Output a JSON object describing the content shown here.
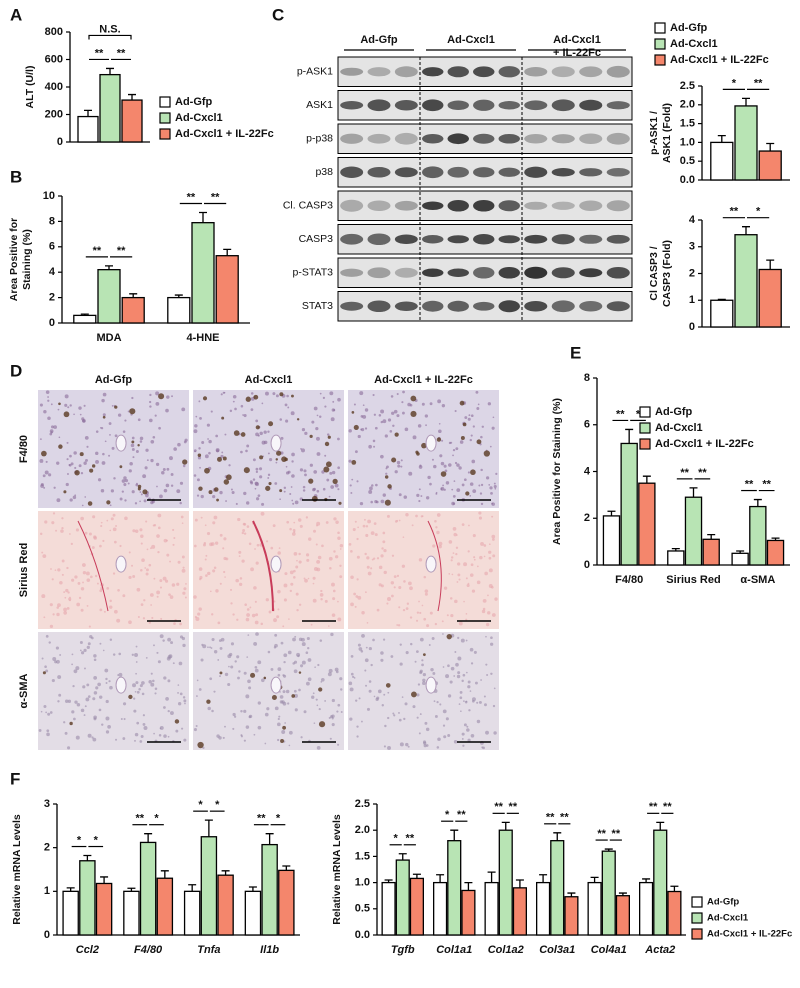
{
  "panels": [
    "A",
    "B",
    "C",
    "D",
    "E",
    "F"
  ],
  "chart_data": [
    {
      "type": "bar",
      "y_label": [
        "ALT (U/l)"
      ],
      "categories": [
        null
      ],
      "ylim": [
        0,
        800
      ],
      "yticks": [
        0,
        200,
        400,
        600,
        800
      ],
      "legend": true,
      "series": [
        {
          "name": "Ad-Gfp",
          "color": "#ffffff",
          "values": [
            185
          ],
          "errors": [
            45
          ]
        },
        {
          "name": "Ad-Cxcl1",
          "color": "#b8e4b4",
          "values": [
            490
          ],
          "errors": [
            45
          ]
        },
        {
          "name": "Ad-Cxcl1 + IL-22Fc",
          "color": "#f4866c",
          "values": [
            305
          ],
          "errors": [
            40
          ]
        }
      ],
      "significance": [
        [
          "**",
          "**",
          "N.S."
        ]
      ]
    },
    {
      "type": "bar",
      "y_label": [
        "Area Positive for",
        "Staining (%)"
      ],
      "categories": [
        "MDA",
        "4-HNE"
      ],
      "ylim": [
        0,
        10
      ],
      "yticks": [
        0,
        2,
        4,
        6,
        8,
        10
      ],
      "legend": false,
      "series": [
        {
          "name": "Ad-Gfp",
          "color": "#ffffff",
          "values": [
            0.6,
            2.0
          ],
          "errors": [
            0.1,
            0.2
          ]
        },
        {
          "name": "Ad-Cxcl1",
          "color": "#b8e4b4",
          "values": [
            4.2,
            7.9
          ],
          "errors": [
            0.3,
            0.8
          ]
        },
        {
          "name": "Ad-Cxcl1 + IL-22Fc",
          "color": "#f4866c",
          "values": [
            2.0,
            5.3
          ],
          "errors": [
            0.3,
            0.5
          ]
        }
      ],
      "significance": [
        [
          "**",
          "**"
        ],
        [
          "**",
          "**"
        ]
      ]
    },
    {
      "type": "bar",
      "y_label": [
        "p-ASK1 /",
        "ASK1 (Fold)"
      ],
      "categories": [
        null
      ],
      "ylim": [
        0,
        2.5
      ],
      "yticks": [
        {
          "value": 0,
          "label": "0.0"
        },
        0.5,
        {
          "value": 1,
          "label": "1.0"
        },
        1.5,
        {
          "value": 2,
          "label": "2.0"
        },
        2.5
      ],
      "legend": true,
      "series": [
        {
          "name": "Ad-Gfp",
          "color": "#ffffff",
          "values": [
            1.0
          ],
          "errors": [
            0.18
          ]
        },
        {
          "name": "Ad-Cxcl1",
          "color": "#b8e4b4",
          "values": [
            1.97
          ],
          "errors": [
            0.2
          ]
        },
        {
          "name": "Ad-Cxcl1 + IL-22Fc",
          "color": "#f4866c",
          "values": [
            0.77
          ],
          "errors": [
            0.2
          ]
        }
      ],
      "significance": [
        [
          "*",
          "**"
        ]
      ]
    },
    {
      "type": "bar",
      "y_label": [
        "Cl CASP3 /",
        "CASP3 (Fold)"
      ],
      "categories": [
        null
      ],
      "ylim": [
        0,
        4
      ],
      "yticks": [
        0,
        1,
        2,
        3,
        4
      ],
      "legend": false,
      "series": [
        {
          "name": "Ad-Gfp",
          "color": "#ffffff",
          "values": [
            1.0
          ],
          "errors": [
            0.03
          ]
        },
        {
          "name": "Ad-Cxcl1",
          "color": "#b8e4b4",
          "values": [
            3.45
          ],
          "errors": [
            0.3
          ]
        },
        {
          "name": "Ad-Cxcl1 + IL-22Fc",
          "color": "#f4866c",
          "values": [
            2.15
          ],
          "errors": [
            0.35
          ]
        }
      ],
      "significance": [
        [
          "**",
          "*"
        ]
      ]
    },
    {
      "type": "bar",
      "y_label": [
        "Area Positive for Staining (%)"
      ],
      "categories": [
        "F4/80",
        "Sirius Red",
        "α-SMA"
      ],
      "ylim": [
        0,
        8
      ],
      "yticks": [
        0,
        2,
        4,
        6,
        8
      ],
      "legend": true,
      "series": [
        {
          "name": "Ad-Gfp",
          "color": "#ffffff",
          "values": [
            2.1,
            0.6,
            0.5
          ],
          "errors": [
            0.2,
            0.1,
            0.1
          ]
        },
        {
          "name": "Ad-Cxcl1",
          "color": "#b8e4b4",
          "values": [
            5.2,
            2.9,
            2.5
          ],
          "errors": [
            0.6,
            0.4,
            0.3
          ]
        },
        {
          "name": "Ad-Cxcl1 + IL-22Fc",
          "color": "#f4866c",
          "values": [
            3.5,
            1.1,
            1.05
          ],
          "errors": [
            0.3,
            0.2,
            0.1
          ]
        }
      ],
      "significance": [
        [
          "**",
          "*"
        ],
        [
          "**",
          "**"
        ],
        [
          "**",
          "**"
        ]
      ]
    },
    {
      "type": "bar",
      "y_label": [
        "Relative mRNA Levels"
      ],
      "categories": [
        "Ccl2",
        "F4/80",
        "Tnfa",
        "Il1b"
      ],
      "italic_categories": true,
      "ylim": [
        0,
        3
      ],
      "yticks": [
        0,
        1,
        2,
        3
      ],
      "legend": false,
      "series": [
        {
          "name": "Ad-Gfp",
          "color": "#ffffff",
          "values": [
            1,
            1,
            1,
            1
          ],
          "errors": [
            0.08,
            0.07,
            0.15,
            0.1
          ]
        },
        {
          "name": "Ad-Cxcl1",
          "color": "#b8e4b4",
          "values": [
            1.7,
            2.12,
            2.25,
            2.07
          ],
          "errors": [
            0.12,
            0.2,
            0.38,
            0.25
          ]
        },
        {
          "name": "Ad-Cxcl1 + IL-22Fc",
          "color": "#f4866c",
          "values": [
            1.18,
            1.3,
            1.37,
            1.48
          ],
          "errors": [
            0.15,
            0.17,
            0.1,
            0.1
          ]
        }
      ],
      "significance": [
        [
          "*",
          "*"
        ],
        [
          "**",
          "*"
        ],
        [
          "*",
          "*"
        ],
        [
          "**",
          "*"
        ]
      ]
    },
    {
      "type": "bar",
      "y_label": [
        "Relative mRNA Levels"
      ],
      "categories": [
        "Tgfb",
        "Col1a1",
        "Col1a2",
        "Col3a1",
        "Col4a1",
        "Acta2"
      ],
      "italic_categories": true,
      "ylim": [
        0,
        2.5
      ],
      "yticks": [
        {
          "value": 0,
          "label": "0.0"
        },
        0.5,
        {
          "value": 1,
          "label": "1.0"
        },
        1.5,
        {
          "value": 2,
          "label": "2.0"
        },
        2.5
      ],
      "legend": true,
      "series": [
        {
          "name": "Ad-Gfp",
          "color": "#ffffff",
          "values": [
            1,
            1,
            1,
            1,
            1,
            1
          ],
          "errors": [
            0.05,
            0.15,
            0.2,
            0.15,
            0.1,
            0.07
          ]
        },
        {
          "name": "Ad-Cxcl1",
          "color": "#b8e4b4",
          "values": [
            1.43,
            1.8,
            2.0,
            1.8,
            1.6,
            2.0
          ],
          "errors": [
            0.12,
            0.2,
            0.15,
            0.15,
            0.04,
            0.15
          ]
        },
        {
          "name": "Ad-Cxcl1 + IL-22Fc",
          "color": "#f4866c",
          "values": [
            1.08,
            0.85,
            0.9,
            0.73,
            0.75,
            0.83
          ],
          "errors": [
            0.08,
            0.15,
            0.15,
            0.07,
            0.05,
            0.1
          ]
        }
      ],
      "significance": [
        [
          "*",
          "**"
        ],
        [
          "*",
          "**"
        ],
        [
          "**",
          "**"
        ],
        [
          "**",
          "**"
        ],
        [
          "**",
          "**"
        ],
        [
          "**",
          "**"
        ]
      ]
    }
  ],
  "blot": {
    "groups": [
      [
        "Ad-Gfp"
      ],
      [
        "Ad-Cxcl1"
      ],
      [
        "Ad-Cxcl1",
        "+ IL-22Fc"
      ]
    ],
    "rows": [
      "p-ASK1",
      "ASK1",
      "p-p38",
      "p38",
      "Cl. CASP3",
      "CASP3",
      "p-STAT3",
      "STAT3"
    ]
  },
  "histology": {
    "columns": [
      "Ad-Gfp",
      "Ad-Cxcl1",
      "Ad-Cxcl1 + IL-22Fc"
    ],
    "rows": [
      "F4/80",
      "Sirius Red",
      "α-SMA"
    ]
  }
}
